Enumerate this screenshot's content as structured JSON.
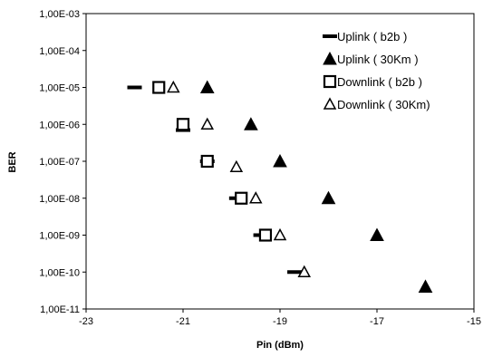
{
  "chart_data": {
    "type": "scatter",
    "title": "",
    "xlabel": "Pin (dBm)",
    "ylabel": "BER",
    "xlim": [
      -23,
      -15
    ],
    "ylim": [
      1e-11,
      0.001
    ],
    "yscale": "log",
    "x_ticks": [
      "-23",
      "-21",
      "-19",
      "-17",
      "-15"
    ],
    "y_ticks": [
      "1,00E-03",
      "1,00E-04",
      "1,00E-05",
      "1,00E-06",
      "1,00E-07",
      "1,00E-08",
      "1,00E-09",
      "1,00E-10",
      "1,00E-11"
    ],
    "grid": false,
    "legend_position": "top-right",
    "series": [
      {
        "name": "Uplink  ( b2b )",
        "marker": "dash",
        "color": "#000000",
        "points": [
          {
            "x": -22.0,
            "y": 1e-05
          },
          {
            "x": -21.0,
            "y": 7e-07
          },
          {
            "x": -20.5,
            "y": 1e-07
          },
          {
            "x": -19.9,
            "y": 1e-08
          },
          {
            "x": -19.4,
            "y": 1e-09
          },
          {
            "x": -18.7,
            "y": 1e-10
          }
        ]
      },
      {
        "name": "Uplink  ( 30Km )",
        "marker": "triangle-filled",
        "color": "#000000",
        "points": [
          {
            "x": -20.5,
            "y": 1e-05
          },
          {
            "x": -19.6,
            "y": 1e-06
          },
          {
            "x": -19.0,
            "y": 1e-07
          },
          {
            "x": -18.0,
            "y": 1e-08
          },
          {
            "x": -17.0,
            "y": 1e-09
          },
          {
            "x": -16.0,
            "y": 4e-11
          }
        ]
      },
      {
        "name": "Downlink  ( b2b )",
        "marker": "square-open",
        "color": "#000000",
        "points": [
          {
            "x": -21.5,
            "y": 1e-05
          },
          {
            "x": -21.0,
            "y": 1e-06
          },
          {
            "x": -20.5,
            "y": 1e-07
          },
          {
            "x": -19.8,
            "y": 1e-08
          },
          {
            "x": -19.3,
            "y": 1e-09
          }
        ]
      },
      {
        "name": "Downlink  ( 30Km)",
        "marker": "triangle-open",
        "color": "#000000",
        "points": [
          {
            "x": -21.2,
            "y": 1e-05
          },
          {
            "x": -20.5,
            "y": 1e-06
          },
          {
            "x": -19.9,
            "y": 7e-08
          },
          {
            "x": -19.5,
            "y": 1e-08
          },
          {
            "x": -19.0,
            "y": 1e-09
          },
          {
            "x": -18.5,
            "y": 1e-10
          }
        ]
      }
    ]
  }
}
